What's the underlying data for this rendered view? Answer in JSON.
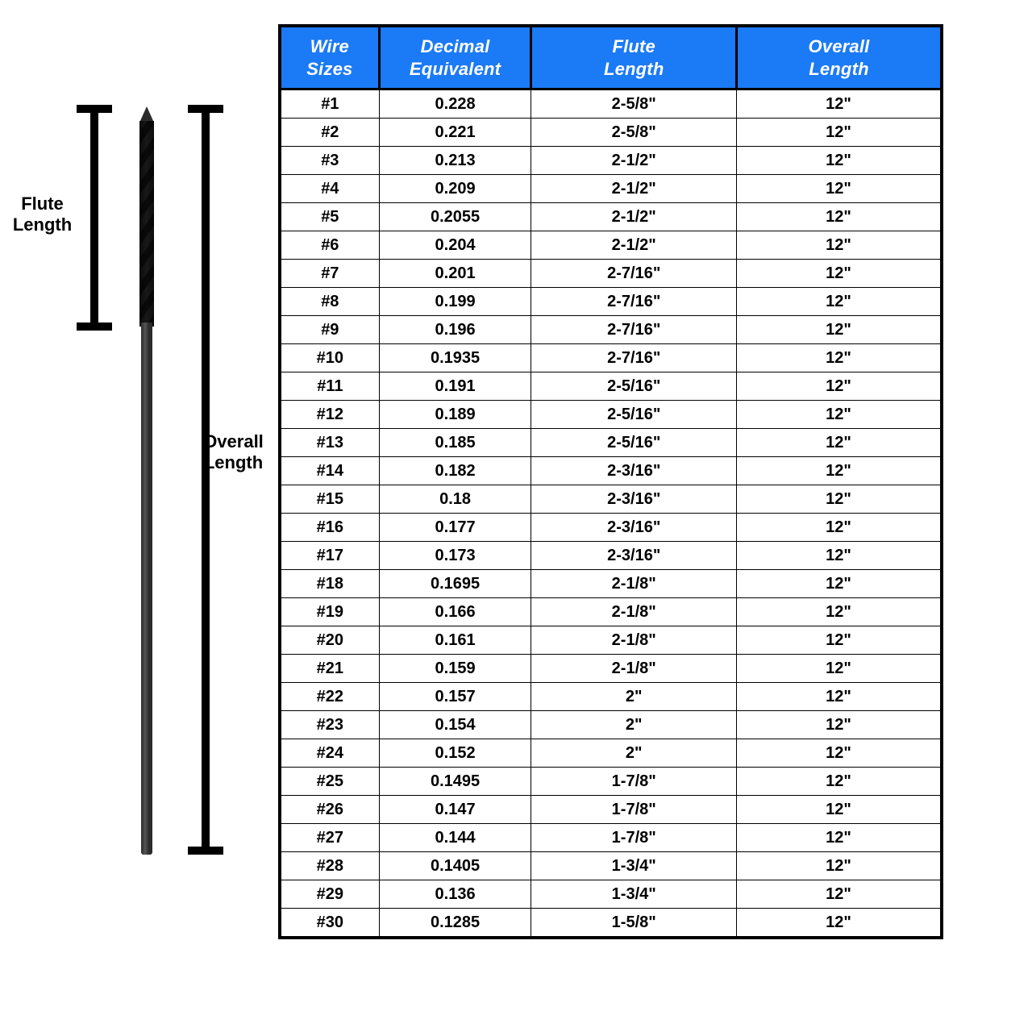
{
  "labels": {
    "flute": "Flute Length",
    "overall": "Overall Length"
  },
  "table": {
    "header_bg": "#1b7af5",
    "header_fg": "#ffffff",
    "border_color": "#000000",
    "columns": [
      {
        "line1": "Wire",
        "line2": "Sizes"
      },
      {
        "line1": "Decimal",
        "line2": "Equivalent"
      },
      {
        "line1": "Flute",
        "line2": "Length"
      },
      {
        "line1": "Overall",
        "line2": "Length"
      }
    ],
    "rows": [
      [
        "#1",
        "0.228",
        "2-5/8\"",
        "12\""
      ],
      [
        "#2",
        "0.221",
        "2-5/8\"",
        "12\""
      ],
      [
        "#3",
        "0.213",
        "2-1/2\"",
        "12\""
      ],
      [
        "#4",
        "0.209",
        "2-1/2\"",
        "12\""
      ],
      [
        "#5",
        "0.2055",
        "2-1/2\"",
        "12\""
      ],
      [
        "#6",
        "0.204",
        "2-1/2\"",
        "12\""
      ],
      [
        "#7",
        "0.201",
        "2-7/16\"",
        "12\""
      ],
      [
        "#8",
        "0.199",
        "2-7/16\"",
        "12\""
      ],
      [
        "#9",
        "0.196",
        "2-7/16\"",
        "12\""
      ],
      [
        "#10",
        "0.1935",
        "2-7/16\"",
        "12\""
      ],
      [
        "#11",
        "0.191",
        "2-5/16\"",
        "12\""
      ],
      [
        "#12",
        "0.189",
        "2-5/16\"",
        "12\""
      ],
      [
        "#13",
        "0.185",
        "2-5/16\"",
        "12\""
      ],
      [
        "#14",
        "0.182",
        "2-3/16\"",
        "12\""
      ],
      [
        "#15",
        "0.18",
        "2-3/16\"",
        "12\""
      ],
      [
        "#16",
        "0.177",
        "2-3/16\"",
        "12\""
      ],
      [
        "#17",
        "0.173",
        "2-3/16\"",
        "12\""
      ],
      [
        "#18",
        "0.1695",
        "2-1/8\"",
        "12\""
      ],
      [
        "#19",
        "0.166",
        "2-1/8\"",
        "12\""
      ],
      [
        "#20",
        "0.161",
        "2-1/8\"",
        "12\""
      ],
      [
        "#21",
        "0.159",
        "2-1/8\"",
        "12\""
      ],
      [
        "#22",
        "0.157",
        "2\"",
        "12\""
      ],
      [
        "#23",
        "0.154",
        "2\"",
        "12\""
      ],
      [
        "#24",
        "0.152",
        "2\"",
        "12\""
      ],
      [
        "#25",
        "0.1495",
        "1-7/8\"",
        "12\""
      ],
      [
        "#26",
        "0.147",
        "1-7/8\"",
        "12\""
      ],
      [
        "#27",
        "0.144",
        "1-7/8\"",
        "12\""
      ],
      [
        "#28",
        "0.1405",
        "1-3/4\"",
        "12\""
      ],
      [
        "#29",
        "0.136",
        "1-3/4\"",
        "12\""
      ],
      [
        "#30",
        "0.1285",
        "1-5/8\"",
        "12\""
      ]
    ]
  },
  "diagram": {
    "drill_color_dark": "#2b2b2b",
    "drill_color_light": "#555555",
    "bracket_color": "#000000"
  }
}
